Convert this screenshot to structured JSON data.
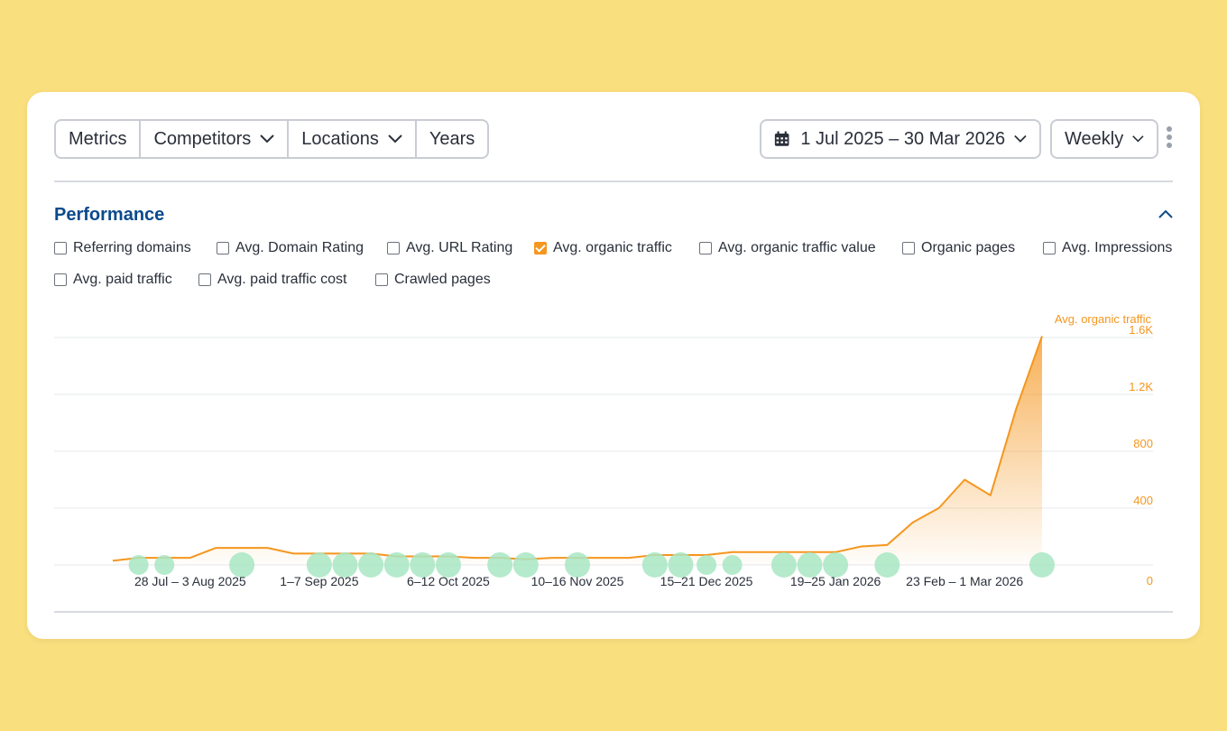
{
  "toolbar": {
    "metrics": "Metrics",
    "competitors": "Competitors",
    "locations": "Locations",
    "years": "Years",
    "date_range": "1 Jul 2025 – 30 Mar 2026",
    "granularity": "Weekly"
  },
  "section": {
    "title": "Performance"
  },
  "checkboxes": [
    {
      "label": "Referring domains",
      "checked": false
    },
    {
      "label": "Avg. Domain Rating",
      "checked": false
    },
    {
      "label": "Avg. URL Rating",
      "checked": false
    },
    {
      "label": "Avg. organic traffic",
      "checked": true
    },
    {
      "label": "Avg. organic traffic value",
      "checked": false
    },
    {
      "label": "Organic pages",
      "checked": false
    },
    {
      "label": "Avg. Impressions",
      "checked": false
    },
    {
      "label": "Avg. paid traffic",
      "checked": false
    },
    {
      "label": "Avg. paid traffic cost",
      "checked": false
    },
    {
      "label": "Crawled pages",
      "checked": false
    }
  ],
  "colors": {
    "accent": "#f5961e",
    "title": "#0b4a8b",
    "marker": "#a8e6c3",
    "background": "#FADF7E"
  },
  "chart_data": {
    "type": "area",
    "series": [
      {
        "name": "Avg. organic traffic",
        "values": [
          30,
          50,
          50,
          50,
          120,
          120,
          120,
          80,
          80,
          80,
          80,
          60,
          60,
          60,
          50,
          50,
          40,
          50,
          50,
          50,
          50,
          70,
          70,
          70,
          90,
          90,
          90,
          90,
          90,
          130,
          140,
          300,
          400,
          600,
          490,
          1100,
          1610
        ]
      }
    ],
    "x_tick_labels": [
      "28 Jul – 3 Aug 2025",
      "1–7 Sep 2025",
      "6–12 Oct 2025",
      "10–16 Nov 2025",
      "15–21 Dec 2025",
      "19–25 Jan 2026",
      "23 Feb – 1 Mar 2026"
    ],
    "x_tick_indices": [
      3,
      8,
      13,
      18,
      23,
      28,
      33
    ],
    "y_ticks": [
      0,
      400,
      800,
      "1.2K",
      "1.6K"
    ],
    "ylim": [
      0,
      1600
    ],
    "annotation_markers": [
      {
        "index": 1,
        "size": "small"
      },
      {
        "index": 2,
        "size": "small"
      },
      {
        "index": 5,
        "size": "large"
      },
      {
        "index": 8,
        "size": "large"
      },
      {
        "index": 9,
        "size": "large"
      },
      {
        "index": 10,
        "size": "large"
      },
      {
        "index": 11,
        "size": "large"
      },
      {
        "index": 12,
        "size": "large"
      },
      {
        "index": 13,
        "size": "large"
      },
      {
        "index": 15,
        "size": "large"
      },
      {
        "index": 16,
        "size": "large"
      },
      {
        "index": 18,
        "size": "large"
      },
      {
        "index": 21,
        "size": "large"
      },
      {
        "index": 22,
        "size": "large"
      },
      {
        "index": 23,
        "size": "small"
      },
      {
        "index": 24,
        "size": "small"
      },
      {
        "index": 26,
        "size": "large"
      },
      {
        "index": 27,
        "size": "large"
      },
      {
        "index": 28,
        "size": "large"
      },
      {
        "index": 30,
        "size": "large"
      },
      {
        "index": 36,
        "size": "large"
      }
    ],
    "grid": true,
    "axis_side": "right"
  }
}
